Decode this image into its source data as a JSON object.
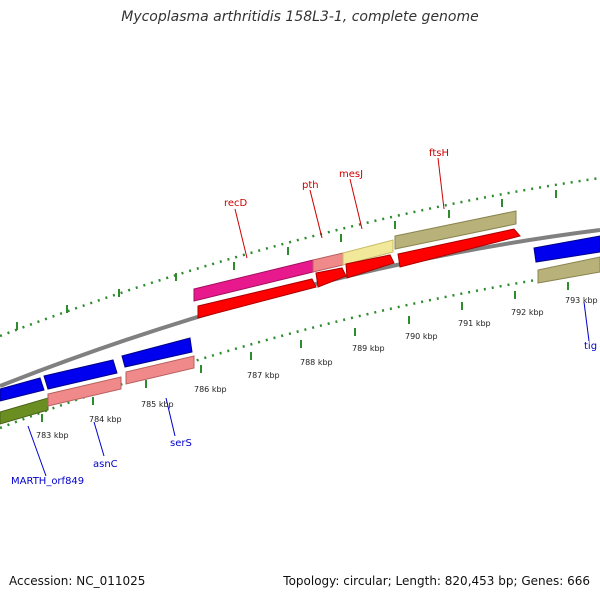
{
  "title": "Mycoplasma arthritidis 158L3-1, complete genome",
  "footer": {
    "accession": "Accession: NC_011025",
    "summary": "Topology: circular; Length: 820,453 bp; Genes: 666"
  },
  "colors": {
    "forward_label": "#cc0000",
    "reverse_label": "#0000cc",
    "tick": "#2e8b2e",
    "backbone": "#808080"
  },
  "ticks": [
    {
      "label": "783 kbp"
    },
    {
      "label": "784 kbp"
    },
    {
      "label": "785 kbp"
    },
    {
      "label": "786 kbp"
    },
    {
      "label": "787 kbp"
    },
    {
      "label": "788 kbp"
    },
    {
      "label": "789 kbp"
    },
    {
      "label": "790 kbp"
    },
    {
      "label": "791 kbp"
    },
    {
      "label": "792 kbp"
    },
    {
      "label": "793 kbp"
    }
  ],
  "gene_labels": [
    {
      "name": "recD",
      "strand": "forward"
    },
    {
      "name": "pth",
      "strand": "forward"
    },
    {
      "name": "mesJ",
      "strand": "forward"
    },
    {
      "name": "ftsH",
      "strand": "forward"
    },
    {
      "name": "MARTH_orf849",
      "strand": "reverse"
    },
    {
      "name": "asnC",
      "strand": "reverse"
    },
    {
      "name": "serS",
      "strand": "reverse"
    },
    {
      "name": "tig",
      "strand": "reverse"
    }
  ]
}
